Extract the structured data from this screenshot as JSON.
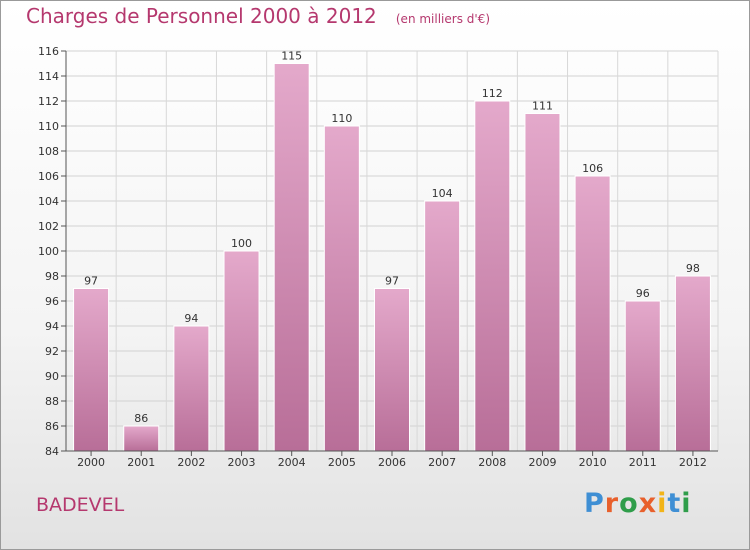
{
  "header": {
    "title": "Charges de Personnel 2000 à 2012",
    "unit": "(en milliers d'€)"
  },
  "footer": {
    "commune": "BADEVEL",
    "logo_text": "Proxiti"
  },
  "colors": {
    "title": "#b5386e",
    "bar_top": "#e4a9cb",
    "bar_bottom": "#b86e98",
    "logo": [
      "#3f8fd4",
      "#e8602c",
      "#2f9d4a",
      "#e8602c",
      "#f2b418",
      "#3f8fd4",
      "#2f9d4a"
    ]
  },
  "chart_data": {
    "type": "bar",
    "title": "Charges de Personnel 2000 à 2012",
    "subtitle": "(en milliers d'€)",
    "categories": [
      "2000",
      "2001",
      "2002",
      "2003",
      "2004",
      "2005",
      "2006",
      "2007",
      "2008",
      "2009",
      "2010",
      "2011",
      "2012"
    ],
    "values": [
      97,
      86,
      94,
      100,
      115,
      110,
      97,
      104,
      112,
      111,
      106,
      96,
      98
    ],
    "ylim": [
      84,
      116
    ],
    "yticks": [
      84,
      86,
      88,
      90,
      92,
      94,
      96,
      98,
      100,
      102,
      104,
      106,
      108,
      110,
      112,
      114,
      116
    ],
    "grid": true,
    "xlabel": "",
    "ylabel": ""
  }
}
